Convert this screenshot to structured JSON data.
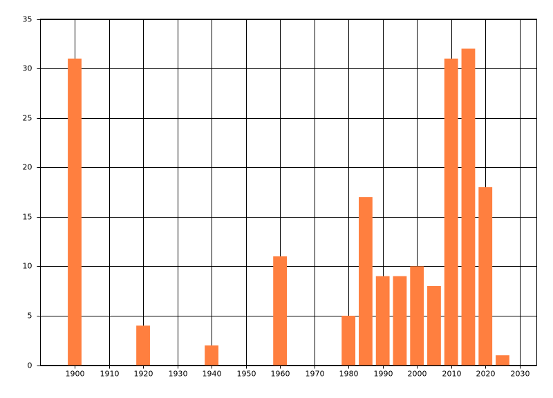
{
  "chart_data": {
    "type": "bar",
    "x": [
      1900,
      1920,
      1940,
      1960,
      1980,
      1985,
      1990,
      1995,
      2000,
      2005,
      2010,
      2015,
      2020,
      2025
    ],
    "values": [
      31,
      4,
      2,
      11,
      5,
      17,
      9,
      9,
      10,
      8,
      31,
      32,
      18,
      1
    ],
    "color": "#ff7f3f",
    "xlim": [
      1890,
      2035
    ],
    "xticks": [
      1900,
      1910,
      1920,
      1930,
      1940,
      1950,
      1960,
      1970,
      1980,
      1990,
      2000,
      2010,
      2020,
      2030
    ],
    "ylim": [
      0,
      35
    ],
    "yticks": [
      0,
      5,
      10,
      15,
      20,
      25,
      30,
      35
    ],
    "grid": true
  }
}
